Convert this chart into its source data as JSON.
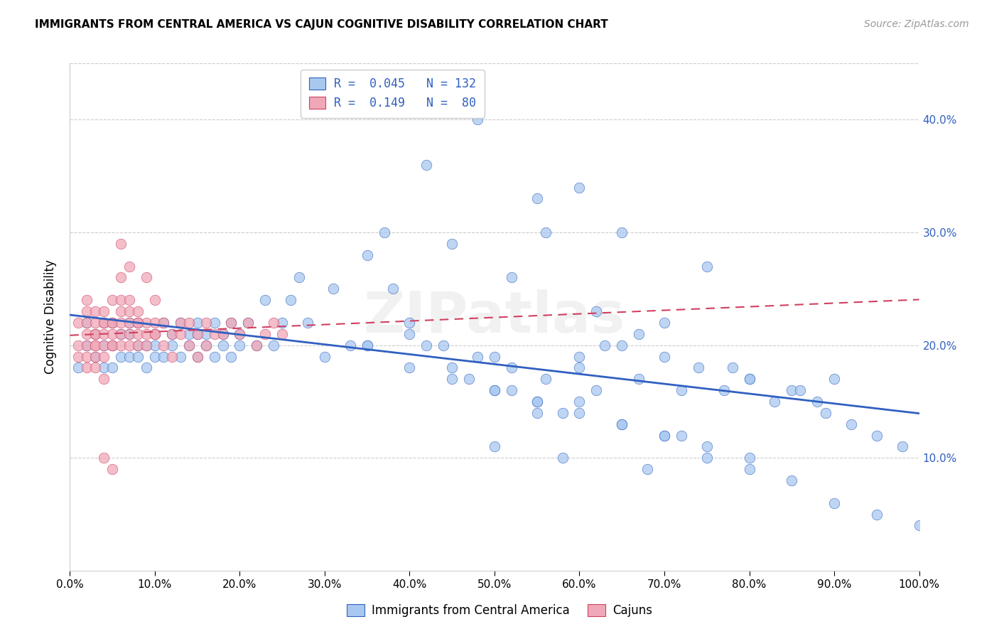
{
  "title": "IMMIGRANTS FROM CENTRAL AMERICA VS CAJUN COGNITIVE DISABILITY CORRELATION CHART",
  "source": "Source: ZipAtlas.com",
  "ylabel": "Cognitive Disability",
  "legend_label1": "Immigrants from Central America",
  "legend_label2": "Cajuns",
  "r1": "0.045",
  "n1": "132",
  "r2": "0.149",
  "n2": "80",
  "color_blue": "#a8c8f0",
  "color_pink": "#f0a8b8",
  "line_blue": "#3060c0",
  "line_pink": "#d04060",
  "watermark": "ZIPatlas",
  "xlim": [
    0,
    1.0
  ],
  "ylim": [
    0,
    0.45
  ],
  "xticks": [
    0,
    0.1,
    0.2,
    0.3,
    0.4,
    0.5,
    0.6,
    0.7,
    0.8,
    0.9,
    1.0
  ],
  "yticks": [
    0.1,
    0.2,
    0.3,
    0.4
  ],
  "blue_x": [
    0.01,
    0.02,
    0.02,
    0.03,
    0.03,
    0.04,
    0.04,
    0.04,
    0.05,
    0.05,
    0.05,
    0.06,
    0.06,
    0.07,
    0.07,
    0.07,
    0.08,
    0.08,
    0.08,
    0.09,
    0.09,
    0.1,
    0.1,
    0.1,
    0.11,
    0.11,
    0.12,
    0.12,
    0.13,
    0.13,
    0.14,
    0.14,
    0.15,
    0.15,
    0.15,
    0.16,
    0.16,
    0.17,
    0.17,
    0.18,
    0.18,
    0.19,
    0.19,
    0.2,
    0.2,
    0.21,
    0.22,
    0.23,
    0.24,
    0.25,
    0.26,
    0.27,
    0.28,
    0.3,
    0.31,
    0.33,
    0.35,
    0.37,
    0.4,
    0.42,
    0.45,
    0.47,
    0.5,
    0.52,
    0.55,
    0.58,
    0.6,
    0.62,
    0.65,
    0.67,
    0.7,
    0.72,
    0.75,
    0.78,
    0.8,
    0.85,
    0.88,
    0.9,
    0.42,
    0.48,
    0.52,
    0.56,
    0.6,
    0.65,
    0.38,
    0.45,
    0.55,
    0.62,
    0.5,
    0.58,
    0.68,
    0.72,
    0.35,
    0.4,
    0.44,
    0.48,
    0.52,
    0.56,
    0.6,
    0.63,
    0.67,
    0.7,
    0.74,
    0.77,
    0.8,
    0.83,
    0.86,
    0.89,
    0.92,
    0.95,
    0.98,
    0.5,
    0.55,
    0.6,
    0.65,
    0.7,
    0.75,
    0.8,
    0.85,
    0.9,
    0.95,
    1.0,
    0.35,
    0.4,
    0.45,
    0.5,
    0.55,
    0.6,
    0.65,
    0.7,
    0.75,
    0.8
  ],
  "blue_y": [
    0.18,
    0.2,
    0.22,
    0.19,
    0.21,
    0.2,
    0.22,
    0.18,
    0.2,
    0.22,
    0.18,
    0.19,
    0.21,
    0.22,
    0.19,
    0.21,
    0.2,
    0.22,
    0.19,
    0.2,
    0.18,
    0.19,
    0.21,
    0.2,
    0.22,
    0.19,
    0.21,
    0.2,
    0.22,
    0.19,
    0.21,
    0.2,
    0.19,
    0.21,
    0.22,
    0.2,
    0.21,
    0.19,
    0.22,
    0.2,
    0.21,
    0.19,
    0.22,
    0.2,
    0.21,
    0.22,
    0.2,
    0.24,
    0.2,
    0.22,
    0.24,
    0.26,
    0.22,
    0.19,
    0.25,
    0.2,
    0.28,
    0.3,
    0.22,
    0.2,
    0.18,
    0.17,
    0.19,
    0.16,
    0.15,
    0.14,
    0.18,
    0.16,
    0.2,
    0.17,
    0.19,
    0.16,
    0.27,
    0.18,
    0.17,
    0.16,
    0.15,
    0.17,
    0.36,
    0.4,
    0.26,
    0.3,
    0.34,
    0.3,
    0.25,
    0.29,
    0.33,
    0.23,
    0.11,
    0.1,
    0.09,
    0.12,
    0.2,
    0.21,
    0.2,
    0.19,
    0.18,
    0.17,
    0.19,
    0.2,
    0.21,
    0.22,
    0.18,
    0.16,
    0.17,
    0.15,
    0.16,
    0.14,
    0.13,
    0.12,
    0.11,
    0.16,
    0.14,
    0.15,
    0.13,
    0.12,
    0.1,
    0.09,
    0.08,
    0.06,
    0.05,
    0.04,
    0.2,
    0.18,
    0.17,
    0.16,
    0.15,
    0.14,
    0.13,
    0.12,
    0.11,
    0.1
  ],
  "pink_x": [
    0.01,
    0.01,
    0.01,
    0.02,
    0.02,
    0.02,
    0.02,
    0.02,
    0.02,
    0.02,
    0.03,
    0.03,
    0.03,
    0.03,
    0.03,
    0.03,
    0.03,
    0.04,
    0.04,
    0.04,
    0.04,
    0.04,
    0.04,
    0.05,
    0.05,
    0.05,
    0.05,
    0.05,
    0.05,
    0.06,
    0.06,
    0.06,
    0.06,
    0.06,
    0.07,
    0.07,
    0.07,
    0.07,
    0.07,
    0.08,
    0.08,
    0.08,
    0.08,
    0.09,
    0.09,
    0.09,
    0.1,
    0.1,
    0.1,
    0.11,
    0.11,
    0.12,
    0.12,
    0.13,
    0.13,
    0.14,
    0.14,
    0.15,
    0.15,
    0.16,
    0.16,
    0.17,
    0.18,
    0.19,
    0.2,
    0.21,
    0.22,
    0.23,
    0.24,
    0.25,
    0.06,
    0.06,
    0.07,
    0.08,
    0.09,
    0.1,
    0.04,
    0.05,
    0.03,
    0.04
  ],
  "pink_y": [
    0.2,
    0.22,
    0.19,
    0.21,
    0.2,
    0.22,
    0.23,
    0.24,
    0.18,
    0.19,
    0.2,
    0.22,
    0.21,
    0.23,
    0.19,
    0.2,
    0.21,
    0.22,
    0.21,
    0.2,
    0.23,
    0.19,
    0.22,
    0.2,
    0.22,
    0.21,
    0.24,
    0.22,
    0.2,
    0.24,
    0.22,
    0.21,
    0.2,
    0.23,
    0.22,
    0.24,
    0.21,
    0.2,
    0.23,
    0.22,
    0.21,
    0.23,
    0.2,
    0.22,
    0.21,
    0.2,
    0.21,
    0.24,
    0.22,
    0.22,
    0.2,
    0.19,
    0.21,
    0.22,
    0.21,
    0.2,
    0.22,
    0.21,
    0.19,
    0.2,
    0.22,
    0.21,
    0.21,
    0.22,
    0.21,
    0.22,
    0.2,
    0.21,
    0.22,
    0.21,
    0.29,
    0.26,
    0.27,
    0.22,
    0.26,
    0.21,
    0.1,
    0.09,
    0.18,
    0.17
  ]
}
